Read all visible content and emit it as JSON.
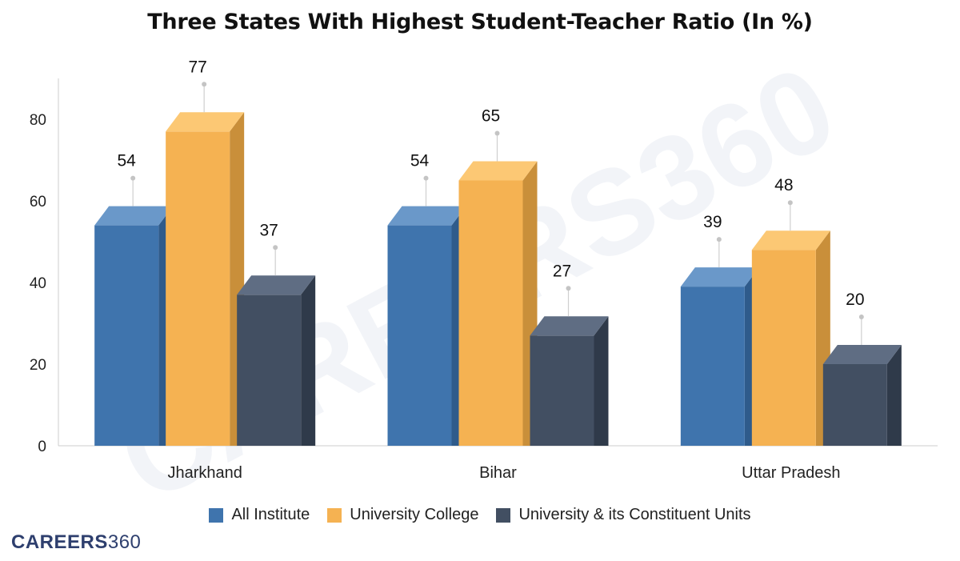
{
  "colors": {
    "all_institute": "#3f74ad",
    "university_college": "#f5b252",
    "university_units": "#424f62",
    "axis": "#cccccc",
    "text": "#222222"
  },
  "brand": {
    "logo_text_bold": "CAREERS",
    "logo_text_light": "360"
  },
  "chart_data": {
    "type": "bar",
    "title": "Three States With Highest Student-Teacher Ratio (In %)",
    "xlabel": "",
    "ylabel": "",
    "categories": [
      "Jharkhand",
      "Bihar",
      "Uttar Pradesh"
    ],
    "series": [
      {
        "name": "All Institute",
        "values": [
          54,
          54,
          39
        ]
      },
      {
        "name": "University College",
        "values": [
          77,
          65,
          48
        ]
      },
      {
        "name": "University & its Constituent Units",
        "values": [
          37,
          27,
          20
        ]
      }
    ],
    "ylim": [
      0,
      90
    ],
    "yticks": [
      0,
      20,
      40,
      60,
      80
    ],
    "grid": false,
    "legend": "bottom",
    "bar_style": "3d"
  }
}
